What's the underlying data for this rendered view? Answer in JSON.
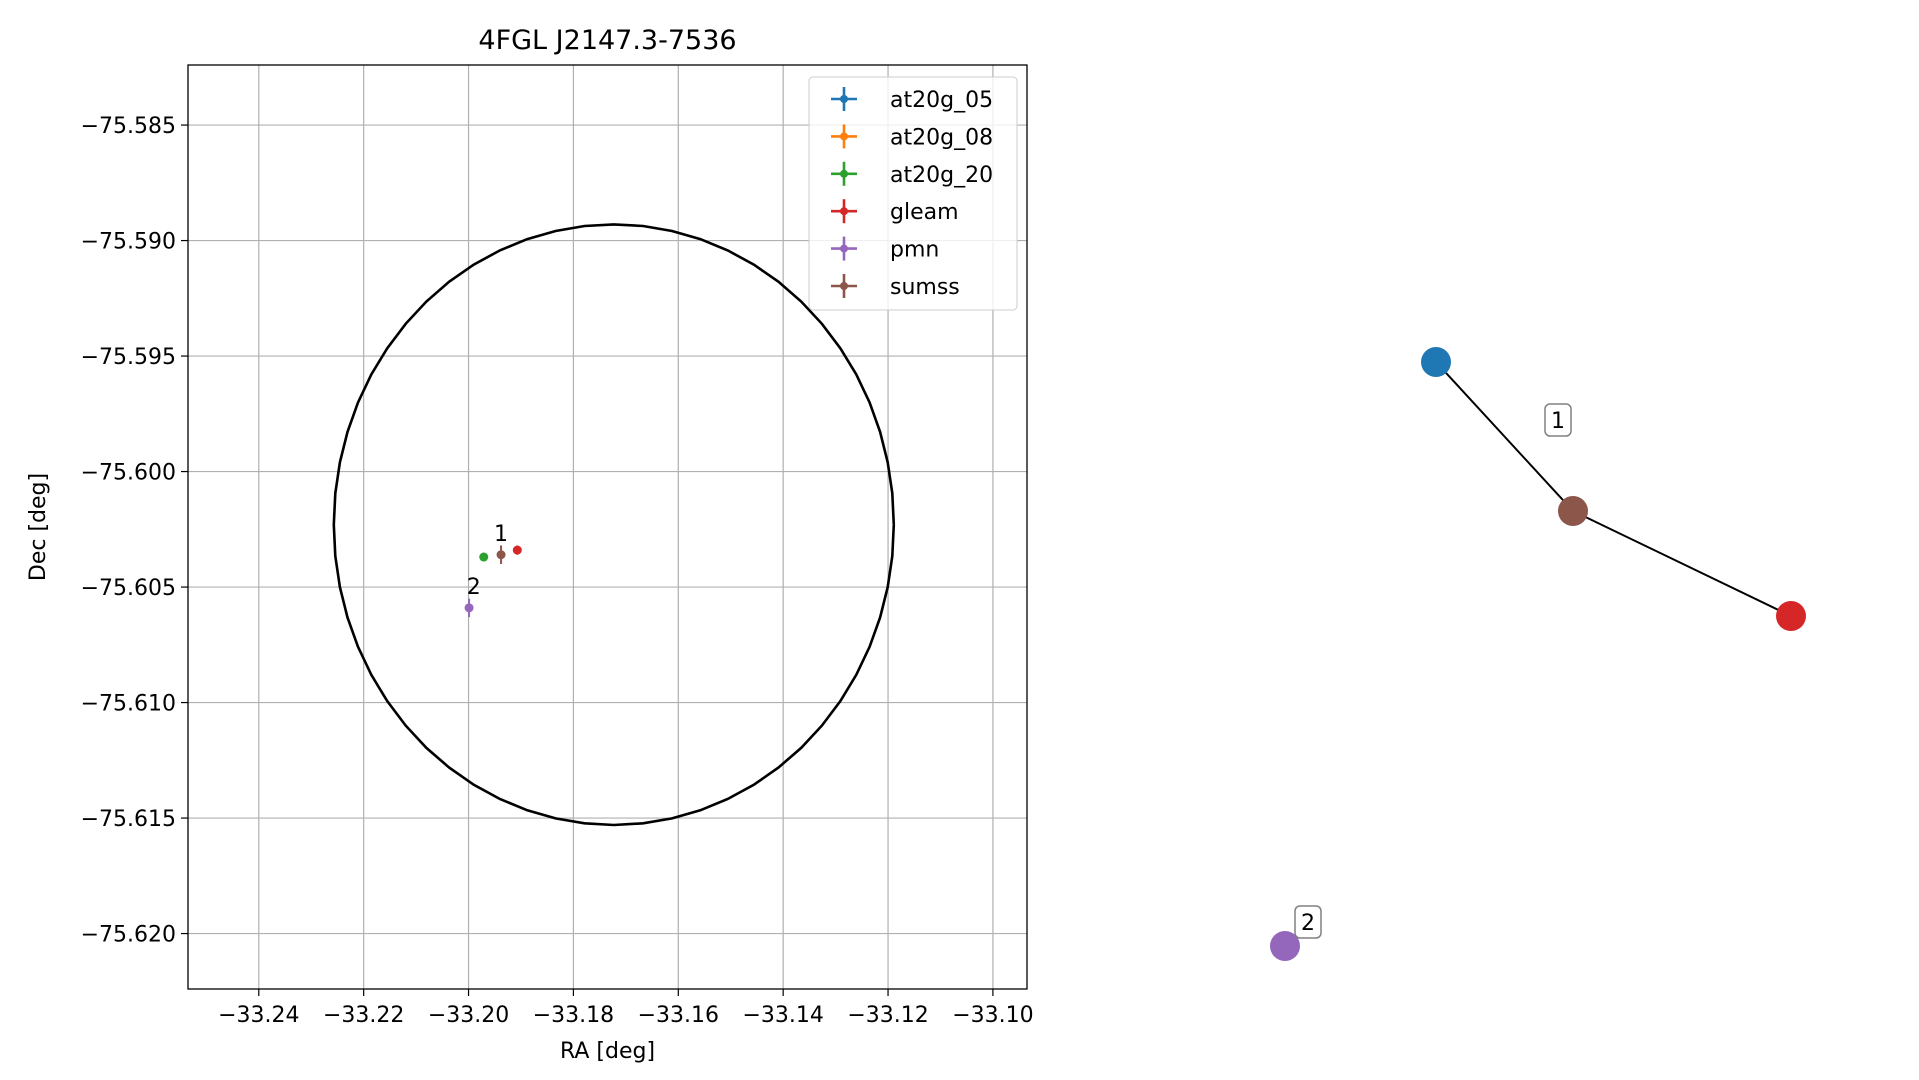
{
  "chart_data": [
    {
      "type": "scatter",
      "title": "4FGL J2147.3-7536",
      "xlabel": "RA [deg]",
      "ylabel": "Dec [deg]",
      "xlim": [
        -33.2535,
        -33.0935
      ],
      "ylim": [
        -75.6224,
        -75.5824
      ],
      "xticks": [
        -33.24,
        -33.22,
        -33.2,
        -33.18,
        -33.16,
        -33.14,
        -33.12,
        -33.1
      ],
      "xtick_labels": [
        "−33.24",
        "−33.22",
        "−33.20",
        "−33.18",
        "−33.16",
        "−33.14",
        "−33.12",
        "−33.10"
      ],
      "yticks": [
        -75.585,
        -75.59,
        -75.595,
        -75.6,
        -75.605,
        -75.61,
        -75.615,
        -75.62
      ],
      "ytick_labels": [
        "−75.585",
        "−75.590",
        "−75.595",
        "−75.600",
        "−75.605",
        "−75.610",
        "−75.615",
        "−75.620"
      ],
      "grid": true,
      "legend_position": "top-right",
      "circle": {
        "center_ra": -33.1723,
        "center_dec": -75.6023,
        "radius_ra": 0.0534,
        "radius_dec": 0.013
      },
      "series": [
        {
          "name": "at20g_05",
          "color": "#1f77b4",
          "points": []
        },
        {
          "name": "at20g_08",
          "color": "#ff7f0e",
          "points": []
        },
        {
          "name": "at20g_20",
          "color": "#2ca02c",
          "points": [
            {
              "x": -33.1971,
              "y": -75.6037,
              "xerr": 0.0004,
              "yerr": 0.0001
            }
          ]
        },
        {
          "name": "gleam",
          "color": "#d62728",
          "points": [
            {
              "x": -33.1907,
              "y": -75.6034,
              "xerr": 0.0005,
              "yerr": 0.0002
            }
          ]
        },
        {
          "name": "pmn",
          "color": "#9467bd",
          "points": [
            {
              "x": -33.1999,
              "y": -75.6059,
              "xerr": 0.0001,
              "yerr": 0.0004
            }
          ]
        },
        {
          "name": "sumss",
          "color": "#8c564b",
          "points": [
            {
              "x": -33.1938,
              "y": -75.6036,
              "xerr": 0.0003,
              "yerr": 0.0004
            }
          ]
        }
      ],
      "annotations": [
        {
          "text": "1",
          "x": -33.1938,
          "y": -75.603
        },
        {
          "text": "2",
          "x": -33.199,
          "y": -75.6053
        }
      ]
    },
    {
      "type": "network",
      "nodes": [
        {
          "id": "at20g",
          "color": "#1f77b4"
        },
        {
          "id": "sumss",
          "color": "#8c564b"
        },
        {
          "id": "gleam",
          "color": "#d62728"
        },
        {
          "id": "pmn",
          "color": "#9467bd"
        }
      ],
      "edges": [
        [
          "at20g",
          "sumss"
        ],
        [
          "sumss",
          "gleam"
        ]
      ],
      "group_labels": [
        "1",
        "2"
      ]
    }
  ]
}
